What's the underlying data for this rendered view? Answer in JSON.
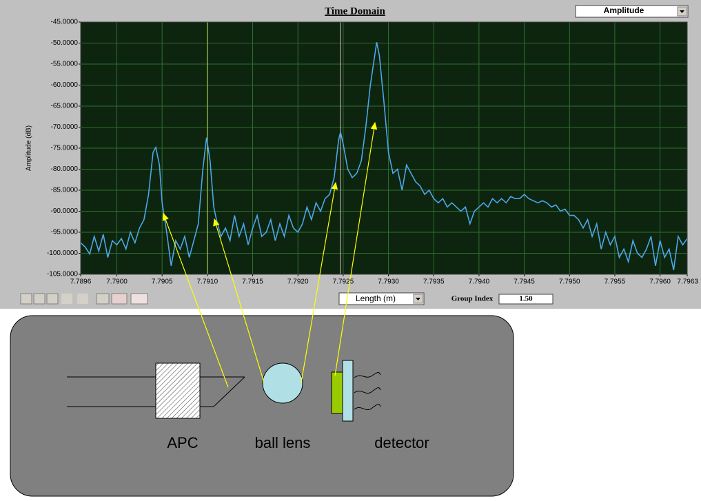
{
  "chart_data": {
    "type": "line",
    "title": "Time Domain",
    "y_label": "Amplitude (dB)",
    "color": "#4da6e8",
    "xlim": [
      7.7896,
      7.7963
    ],
    "ylim": [
      -105,
      -45
    ],
    "grid": true,
    "grid_color": "#2f6e2f",
    "background": "#0d250f",
    "xticks": [
      7.7896,
      {
        "value": 7.79,
        "label": "7.7900"
      },
      7.7905,
      {
        "value": 7.791,
        "label": "7.7910"
      },
      7.7915,
      {
        "value": 7.792,
        "label": "7.7920"
      },
      7.7925,
      {
        "value": 7.793,
        "label": "7.7930"
      },
      7.7935,
      {
        "value": 7.794,
        "label": "7.7940"
      },
      7.7945,
      {
        "value": 7.795,
        "label": "7.7950"
      },
      7.7955,
      {
        "value": 7.796,
        "label": "7.7960"
      },
      7.7963
    ],
    "yticks": [
      {
        "value": -45,
        "label": "-45.0000"
      },
      {
        "value": -50,
        "label": "-50.0000"
      },
      {
        "value": -55,
        "label": "-55.0000"
      },
      {
        "value": -60,
        "label": "-60.0000"
      },
      {
        "value": -65,
        "label": "-65.0000"
      },
      {
        "value": -70,
        "label": "-70.0000"
      },
      {
        "value": -75,
        "label": "-75.0000"
      },
      {
        "value": -80,
        "label": "-80.0000"
      },
      {
        "value": -85,
        "label": "-85.0000"
      },
      {
        "value": -90,
        "label": "-90.0000"
      },
      {
        "value": -95,
        "label": "-95.0000"
      },
      {
        "value": -100,
        "label": "-100.0000"
      },
      {
        "value": -105,
        "label": "-105.0000"
      }
    ],
    "cursors": [
      {
        "x": 7.791,
        "color": "#c8e06a"
      },
      {
        "x": 7.79247,
        "color": "#e8b8c0"
      }
    ],
    "x": [
      7.7896,
      7.78965,
      7.7897,
      7.78975,
      7.7898,
      7.78985,
      7.7899,
      7.78995,
      7.79,
      7.79005,
      7.7901,
      7.79015,
      7.7902,
      7.79025,
      7.7903,
      7.79035,
      7.7904,
      7.79043,
      7.79047,
      7.7905,
      7.79055,
      7.7906,
      7.79065,
      7.7907,
      7.79075,
      7.7908,
      7.79085,
      7.7909,
      7.79095,
      7.79099,
      7.79103,
      7.79107,
      7.7911,
      7.79115,
      7.7912,
      7.79125,
      7.7913,
      7.79135,
      7.7914,
      7.79145,
      7.7915,
      7.79155,
      7.7916,
      7.79165,
      7.7917,
      7.79175,
      7.7918,
      7.79185,
      7.7919,
      7.79195,
      7.792,
      7.79205,
      7.7921,
      7.79215,
      7.7922,
      7.79225,
      7.7923,
      7.79235,
      7.7924,
      7.79245,
      7.79247,
      7.7925,
      7.79255,
      7.7926,
      7.79265,
      7.7927,
      7.79275,
      7.7928,
      7.79287,
      7.7929,
      7.79295,
      7.793,
      7.79305,
      7.7931,
      7.79315,
      7.7932,
      7.79325,
      7.7933,
      7.79335,
      7.7934,
      7.79345,
      7.7935,
      7.79355,
      7.7936,
      7.79365,
      7.7937,
      7.79375,
      7.7938,
      7.79385,
      7.7939,
      7.79395,
      7.794,
      7.79405,
      7.7941,
      7.79415,
      7.7942,
      7.79425,
      7.7943,
      7.79435,
      7.7944,
      7.79445,
      7.7945,
      7.79455,
      7.7946,
      7.79465,
      7.7947,
      7.79475,
      7.7948,
      7.79485,
      7.7949,
      7.79495,
      7.795,
      7.79505,
      7.7951,
      7.79515,
      7.7952,
      7.79525,
      7.7953,
      7.79535,
      7.7954,
      7.79545,
      7.7955,
      7.79555,
      7.7956,
      7.79565,
      7.7957,
      7.79575,
      7.7958,
      7.79585,
      7.7959,
      7.79595,
      7.796,
      7.79605,
      7.7961,
      7.79615,
      7.7962,
      7.79625,
      7.7963
    ],
    "values": [
      -97.5,
      -98.5,
      -100.2,
      -96,
      -99.5,
      -95.5,
      -101,
      -97,
      -98,
      -96.5,
      -99,
      -95,
      -97.5,
      -94,
      -92,
      -86,
      -76,
      -74.8,
      -79,
      -88,
      -95,
      -103,
      -97,
      -99,
      -96,
      -101,
      -97,
      -93,
      -80,
      -72.5,
      -78,
      -89,
      -92,
      -96,
      -94,
      -97,
      -91,
      -96,
      -93,
      -98,
      -94,
      -91,
      -96,
      -95,
      -92,
      -97,
      -93,
      -96,
      -91,
      -94,
      -95,
      -93,
      -89,
      -92,
      -88,
      -90,
      -87,
      -86,
      -82,
      -73,
      -71.2,
      -74,
      -80,
      -82,
      -81,
      -78,
      -70,
      -60,
      -49.8,
      -53,
      -64,
      -76,
      -81,
      -80,
      -85,
      -79,
      -81,
      -83,
      -84,
      -86,
      -85,
      -87,
      -88,
      -87,
      -89,
      -88,
      -89,
      -90,
      -89,
      -93,
      -90,
      -89,
      -88,
      -89,
      -87,
      -88,
      -87,
      -88,
      -86.5,
      -87,
      -87,
      -86,
      -87,
      -87.5,
      -88,
      -87.5,
      -88,
      -89,
      -88.5,
      -90,
      -89.5,
      -91,
      -91,
      -92,
      -94,
      -92,
      -96,
      -93,
      -99,
      -95,
      -98,
      -96,
      -101,
      -99,
      -102,
      -97,
      -100,
      -101,
      -99,
      -96,
      -103,
      -97,
      -101,
      -99,
      -104,
      -96,
      -98,
      -96.5
    ]
  },
  "ui": {
    "mode_select": "Amplitude",
    "x_unit_select": "Length (m)",
    "group_index_label": "Group Index",
    "group_index_value": "1.50"
  },
  "diagram": {
    "labels": [
      "APC",
      "ball lens",
      "detector"
    ]
  }
}
